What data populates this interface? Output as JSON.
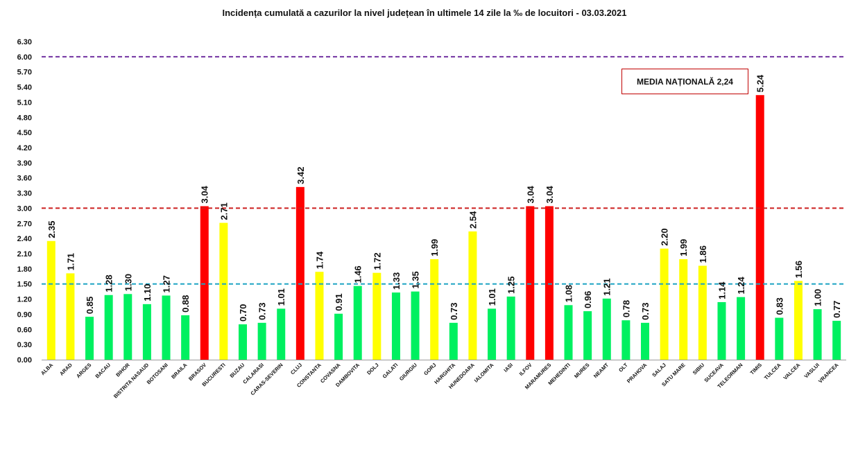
{
  "chart_data": {
    "type": "bar",
    "title": "Incidența cumulată a cazurilor la nivel județean în ultimele 14 zile la ‰ de locuitori - 03.03.2021",
    "xlabel": "",
    "ylabel": "",
    "ylim": [
      0,
      6.3
    ],
    "yticks": [
      "0.00",
      "0.30",
      "0.60",
      "0.90",
      "1.20",
      "1.50",
      "1.80",
      "2.10",
      "2.40",
      "2.70",
      "3.00",
      "3.30",
      "3.60",
      "3.90",
      "4.20",
      "4.50",
      "4.80",
      "5.10",
      "5.40",
      "5.70",
      "6.00",
      "6.30"
    ],
    "grid": false,
    "categories": [
      "ALBA",
      "ARAD",
      "ARGES",
      "BACAU",
      "BIHOR",
      "BISTRITA NASAUD",
      "BOTOSANI",
      "BRAILA",
      "BRASOV",
      "BUCURESTI",
      "BUZAU",
      "CALARASI",
      "CARAS-SEVERIN",
      "CLUJ",
      "CONSTANTA",
      "COVASNA",
      "DAMBOVITA",
      "DOLJ",
      "GALATI",
      "GIURGIU",
      "GORJ",
      "HARGHITA",
      "HUNEDOARA",
      "IALOMITA",
      "IASI",
      "ILFOV",
      "MARAMURES",
      "MEHEDINTI",
      "MURES",
      "NEAMT",
      "OLT",
      "PRAHOVA",
      "SALAJ",
      "SATU MARE",
      "SIBIU",
      "SUCEAVA",
      "TELEORMAN",
      "TIMIS",
      "TULCEA",
      "VALCEA",
      "VASLUI",
      "VRANCEA"
    ],
    "values": [
      2.35,
      1.71,
      0.85,
      1.28,
      1.3,
      1.1,
      1.27,
      0.88,
      3.04,
      2.71,
      0.7,
      0.73,
      1.01,
      3.42,
      1.74,
      0.91,
      1.46,
      1.72,
      1.33,
      1.35,
      1.99,
      0.73,
      2.54,
      1.01,
      1.25,
      3.04,
      3.04,
      1.08,
      0.96,
      1.21,
      0.78,
      0.73,
      2.2,
      1.99,
      1.86,
      1.14,
      1.24,
      5.24,
      0.83,
      1.56,
      1.0,
      0.77
    ],
    "value_labels": [
      "2.35",
      "1.71",
      "0.85",
      "1.28",
      "1.30",
      "1.10",
      "1.27",
      "0.88",
      "3.04",
      "2.71",
      "0.70",
      "0.73",
      "1.01",
      "3.42",
      "1.74",
      "0.91",
      "1.46",
      "1.72",
      "1.33",
      "1.35",
      "1.99",
      "0.73",
      "2.54",
      "1.01",
      "1.25",
      "3.04",
      "3.04",
      "1.08",
      "0.96",
      "1.21",
      "0.78",
      "0.73",
      "2.20",
      "1.99",
      "1.86",
      "1.14",
      "1.24",
      "5.24",
      "0.83",
      "1.56",
      "1.00",
      "0.77"
    ],
    "thresholds": [
      {
        "value": 1.5,
        "color": "#1fa4c4"
      },
      {
        "value": 3.0,
        "color": "#cc1f1f"
      },
      {
        "value": 6.0,
        "color": "#7030a0"
      }
    ],
    "bar_colors": {
      "green": "#00f060",
      "yellow": "#ffff00",
      "red": "#ff0000"
    },
    "annotation": "MEDIA NAȚIONALĂ 2,24"
  }
}
